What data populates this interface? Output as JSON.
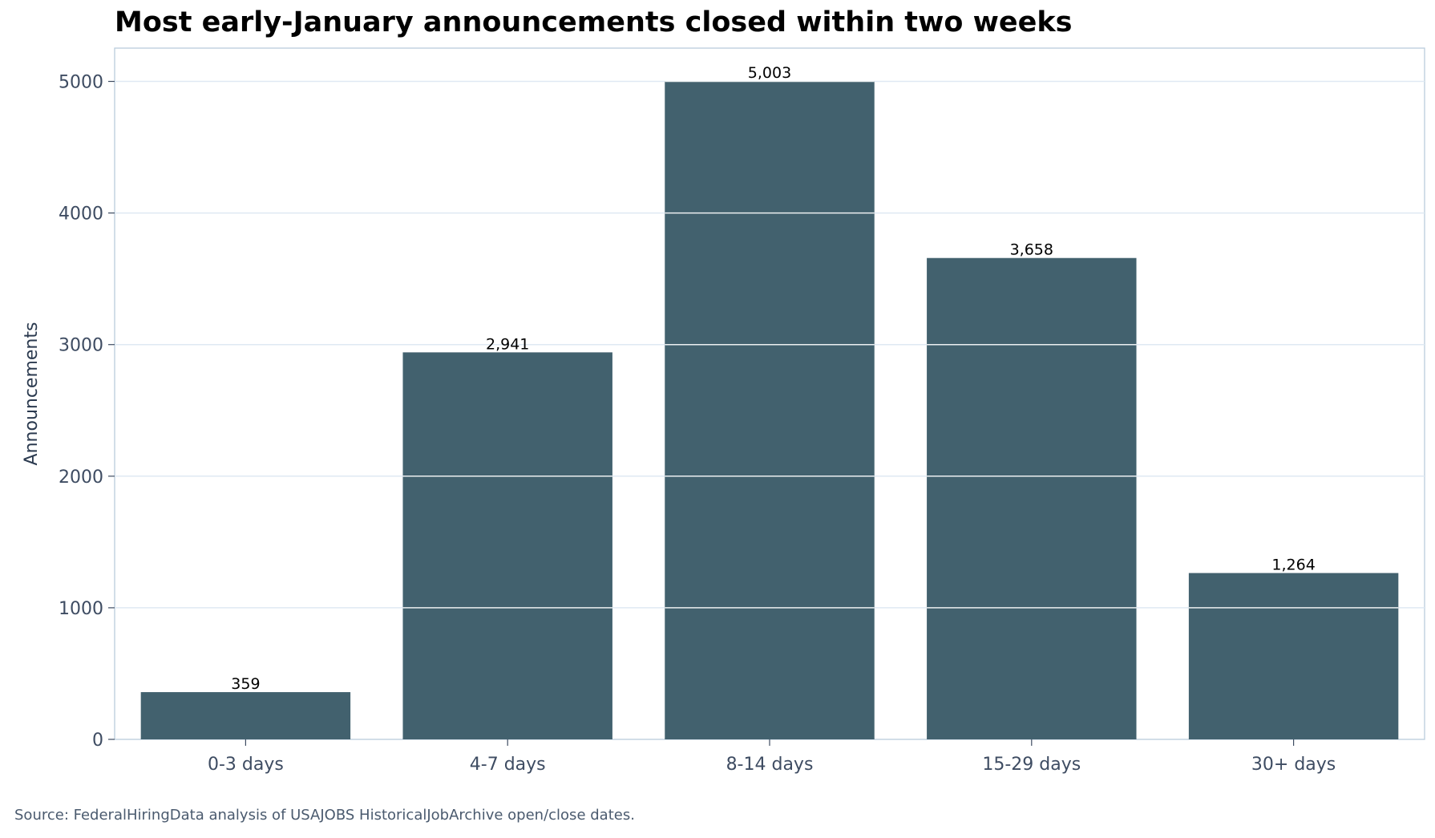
{
  "chart_data": {
    "type": "bar",
    "title": "Most early-January announcements closed within two weeks",
    "xlabel": "",
    "ylabel": "Announcements",
    "categories": [
      "0-3 days",
      "4-7 days",
      "8-14 days",
      "15-29 days",
      "30+ days"
    ],
    "values": [
      359,
      2941,
      5003,
      3658,
      1264
    ],
    "value_labels": [
      "359",
      "2,941",
      "5,003",
      "3,658",
      "1,264"
    ],
    "yticks": [
      0,
      1000,
      2000,
      3000,
      4000,
      5000
    ],
    "ylim": [
      0,
      5253
    ],
    "grid": true,
    "bar_color": "#42616e",
    "grid_color": "#dfe9f3",
    "frame_color": "#b9cddb"
  },
  "footer": {
    "source": "Source: FederalHiringData analysis of USAJOBS HistoricalJobArchive open/close dates."
  }
}
